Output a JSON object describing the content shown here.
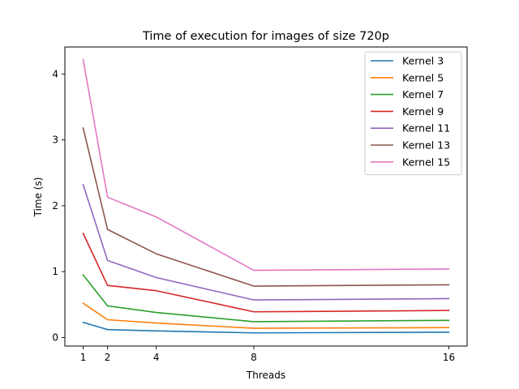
{
  "chart_data": {
    "type": "line",
    "title": "Time of execution for images of size 720p",
    "xlabel": "Threads",
    "ylabel": "Time (s)",
    "x": [
      1,
      2,
      4,
      8,
      16
    ],
    "xticks": [
      1,
      2,
      4,
      8,
      16
    ],
    "yticks": [
      0,
      1,
      2,
      3,
      4
    ],
    "xlim": [
      0.25,
      16.75
    ],
    "ylim": [
      -0.13,
      4.41
    ],
    "grid": false,
    "legend_position": "top-right",
    "series": [
      {
        "name": "Kernel 3",
        "color": "#1f77b4",
        "values": [
          0.23,
          0.12,
          0.1,
          0.07,
          0.08
        ]
      },
      {
        "name": "Kernel 5",
        "color": "#ff7f0e",
        "values": [
          0.52,
          0.27,
          0.22,
          0.14,
          0.15
        ]
      },
      {
        "name": "Kernel 7",
        "color": "#2ca02c",
        "values": [
          0.95,
          0.48,
          0.38,
          0.24,
          0.26
        ]
      },
      {
        "name": "Kernel 9",
        "color": "#d62728",
        "values": [
          1.58,
          0.79,
          0.71,
          0.39,
          0.41
        ]
      },
      {
        "name": "Kernel 11",
        "color": "#9467bd",
        "values": [
          2.32,
          1.17,
          0.91,
          0.57,
          0.59
        ]
      },
      {
        "name": "Kernel 13",
        "color": "#8c564b",
        "values": [
          3.18,
          1.64,
          1.27,
          0.78,
          0.8
        ]
      },
      {
        "name": "Kernel 15",
        "color": "#e377c2",
        "values": [
          4.22,
          2.13,
          1.83,
          1.02,
          1.04
        ]
      }
    ]
  }
}
